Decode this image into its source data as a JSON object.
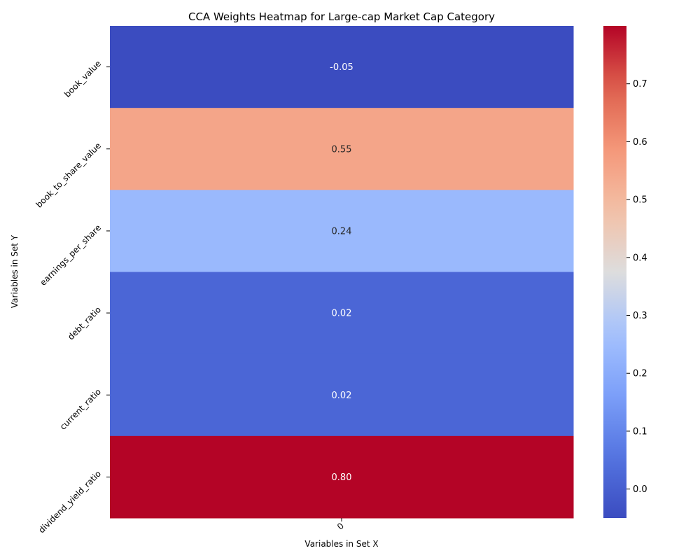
{
  "chart_data": {
    "type": "heatmap",
    "title": "CCA Weights Heatmap for Large-cap Market Cap Category",
    "xlabel": "Variables in Set X",
    "ylabel": "Variables in Set Y",
    "x_categories": [
      "0"
    ],
    "y_categories": [
      "book_value",
      "book_to_share_value",
      "earnings_per_share",
      "debt_ratio",
      "current_ratio",
      "dividend_yield_ratio"
    ],
    "values": [
      [
        -0.05
      ],
      [
        0.55
      ],
      [
        0.24
      ],
      [
        0.02
      ],
      [
        0.02
      ],
      [
        0.8
      ]
    ],
    "cell_labels": [
      "-0.05",
      "0.55",
      "0.24",
      "0.02",
      "0.02",
      "0.80"
    ],
    "colormap": "coolwarm",
    "vmin": -0.05,
    "vmax": 0.8,
    "colorbar_ticks": [
      "0.0",
      "0.1",
      "0.2",
      "0.3",
      "0.4",
      "0.5",
      "0.6",
      "0.7"
    ],
    "colorbar_tick_values": [
      0.0,
      0.1,
      0.2,
      0.3,
      0.4,
      0.5,
      0.6,
      0.7
    ],
    "grid": false,
    "legend": "colorbar-right"
  }
}
